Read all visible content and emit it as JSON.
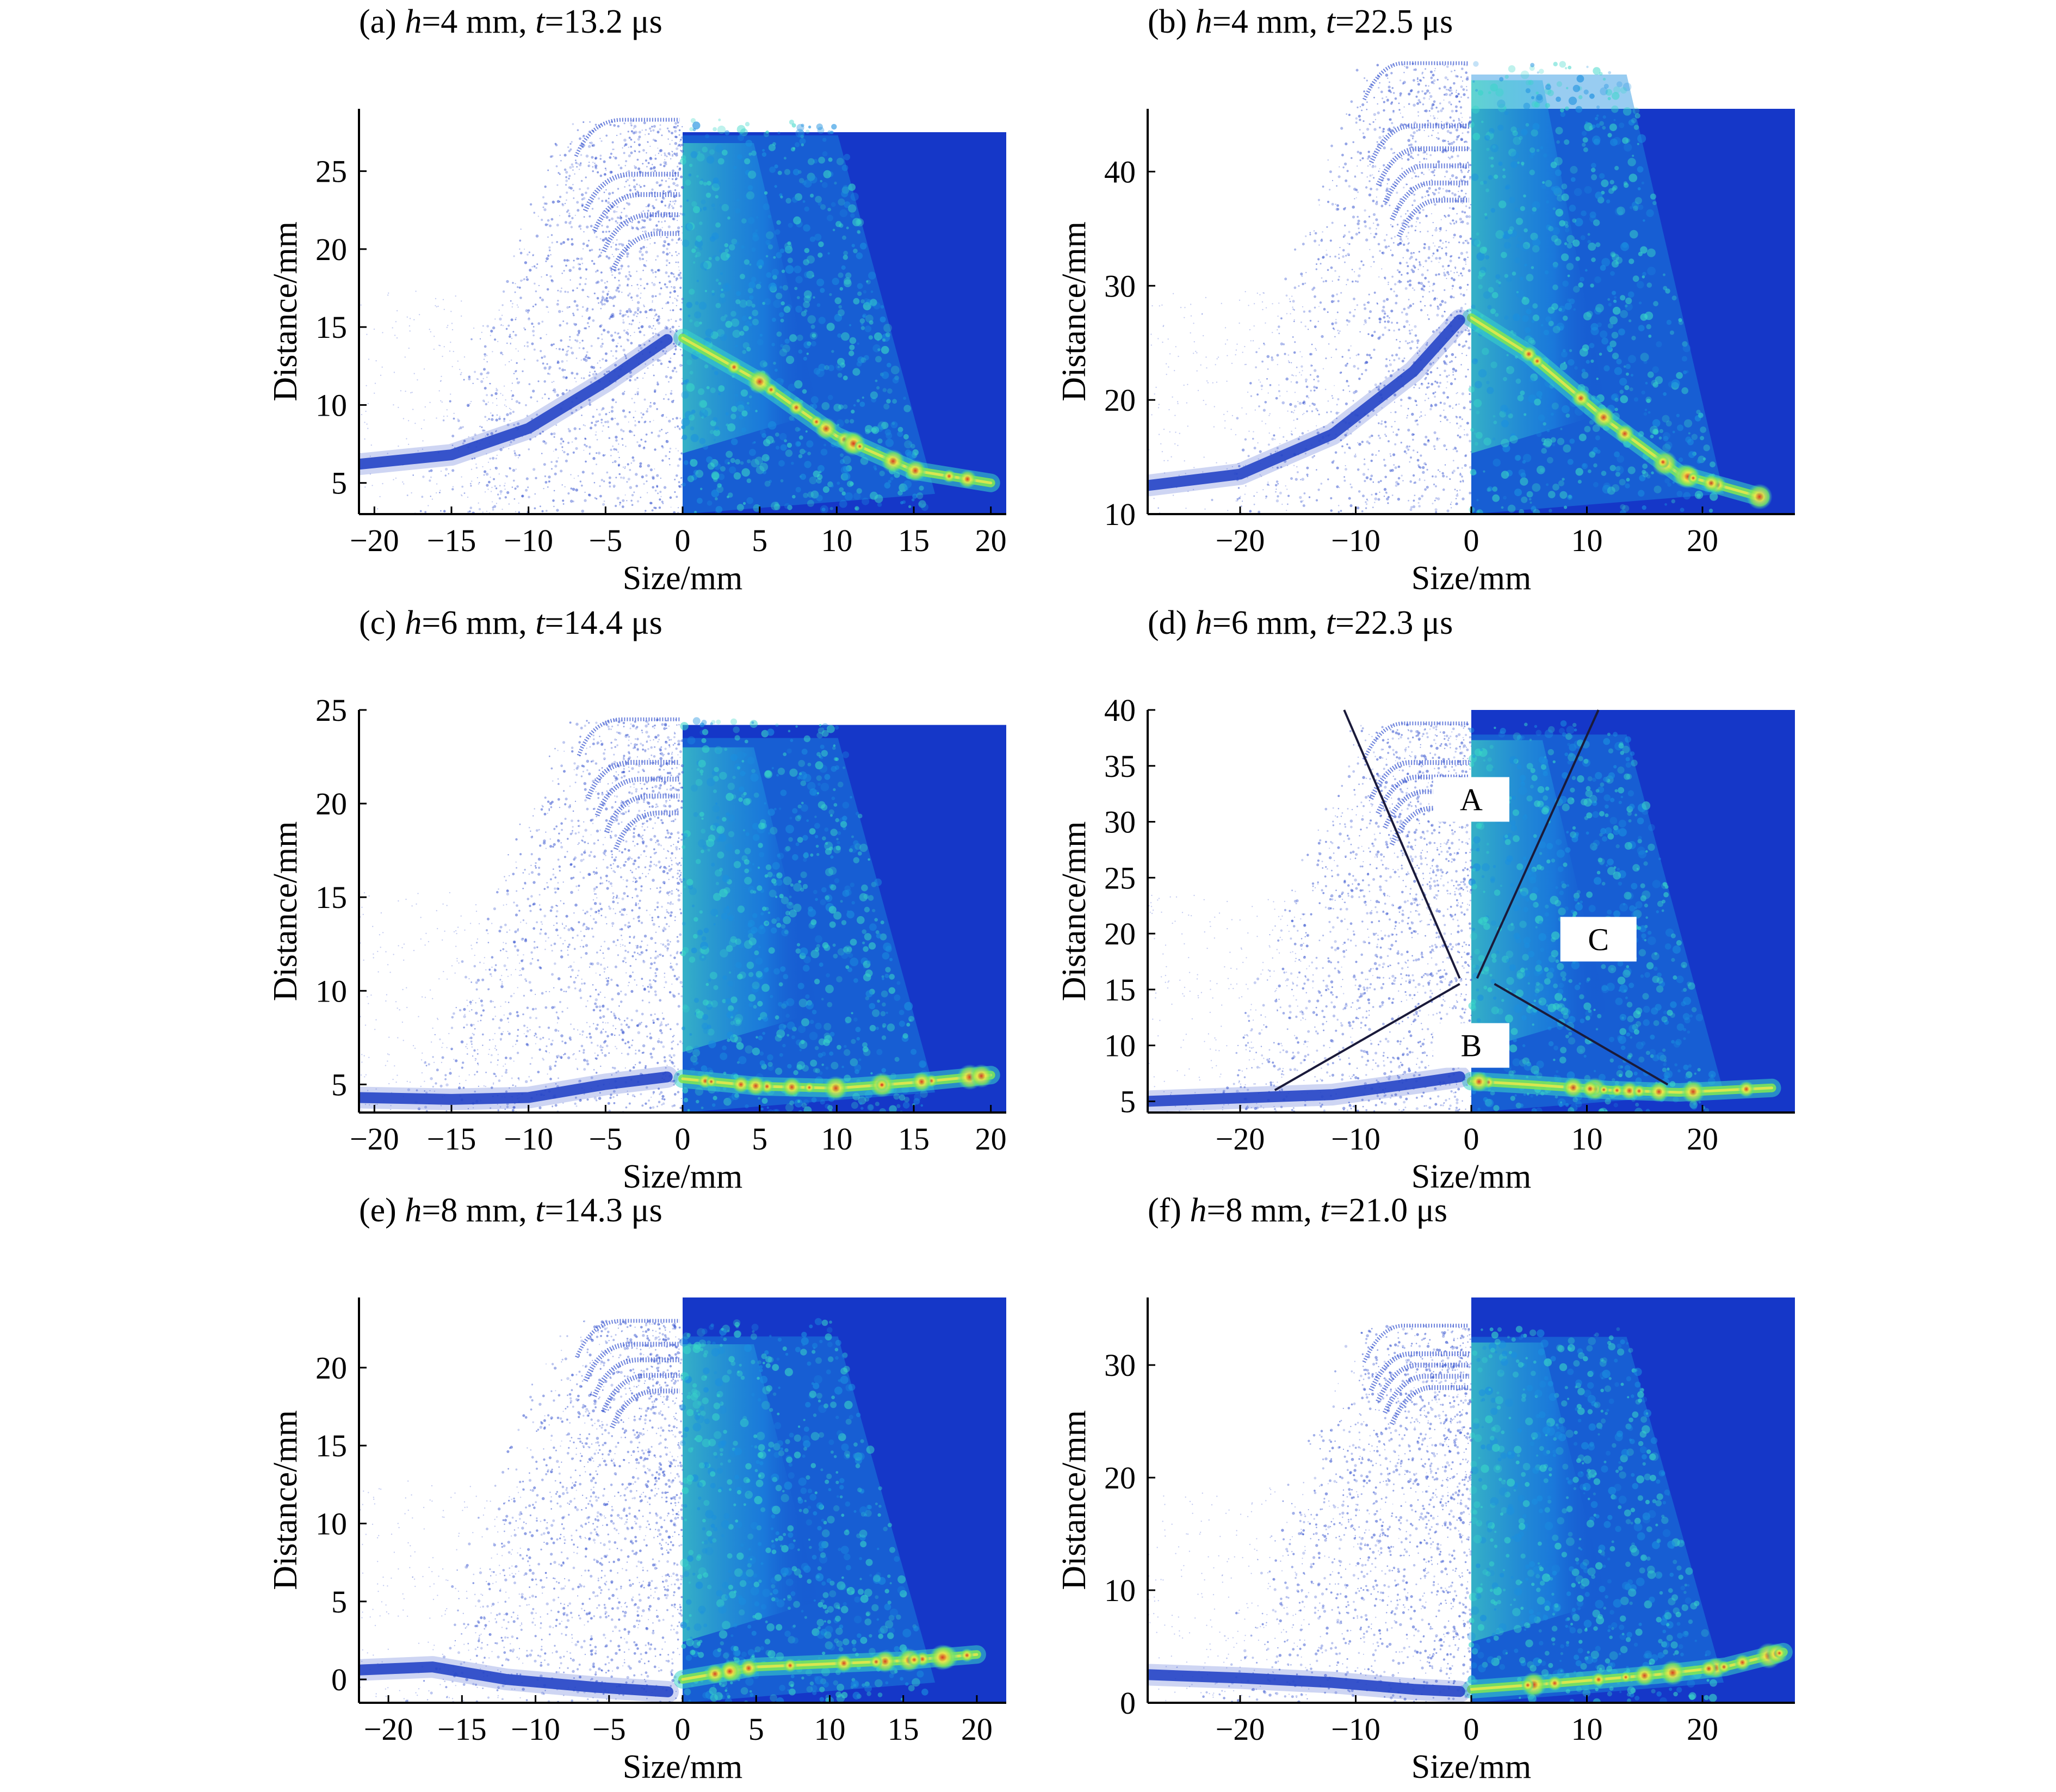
{
  "figure": {
    "colors": {
      "scatter_point": "#3a57d0",
      "scatter_dense": "#1e3fc4",
      "contour_background": "#1537c8",
      "contour_mid": "#1a8fe0",
      "contour_cyan": "#38d6c8",
      "contour_green": "#7be35a",
      "contour_yellow": "#f2e84a",
      "contour_red": "#d01818",
      "axis": "#000000",
      "annotation_line": "#1a1a3a"
    },
    "panels": [
      {
        "id": "a",
        "title_prefix": "(a) ",
        "title_h": "h",
        "title_h_val": "=4 mm, ",
        "title_t": "t",
        "title_t_val": "=13.2 μs",
        "xlabel": "Size/mm",
        "ylabel": "Distance/mm",
        "xlim": [
          -21,
          21
        ],
        "ylim": [
          3,
          29
        ],
        "xticks": [
          -20,
          -15,
          -10,
          -5,
          0,
          5,
          10,
          15,
          20
        ],
        "xtick_labels": [
          "−20",
          "−15",
          "−10",
          "−5",
          "0",
          "5",
          "10",
          "15",
          "20"
        ],
        "yticks": [
          5,
          10,
          15,
          20,
          25
        ],
        "ytick_labels": [
          "5",
          "10",
          "15",
          "20",
          "25"
        ],
        "contour_top": 27.5,
        "front_left": [
          [
            -21,
            6.2
          ],
          [
            -15,
            6.8
          ],
          [
            -10,
            8.5
          ],
          [
            -5,
            11.5
          ],
          [
            -1,
            14.2
          ]
        ],
        "front_right": [
          [
            0,
            14.3
          ],
          [
            5,
            11.5
          ],
          [
            10,
            8
          ],
          [
            15,
            5.8
          ],
          [
            20,
            5
          ]
        ],
        "bands": [
          28.3,
          24.8,
          23.5,
          22.2,
          21
        ]
      },
      {
        "id": "b",
        "title_prefix": "(b) ",
        "title_h": "h",
        "title_h_val": "=4 mm, ",
        "title_t": "t",
        "title_t_val": "=22.5 μs",
        "xlabel": "Size/mm",
        "ylabel": "Distance/mm",
        "xlim": [
          -28,
          28
        ],
        "ylim": [
          10,
          45.5
        ],
        "xticks": [
          -20,
          -10,
          0,
          10,
          20
        ],
        "xtick_labels": [
          "−20",
          "−10",
          "0",
          "10",
          "20"
        ],
        "yticks": [
          10,
          20,
          30,
          40
        ],
        "ytick_labels": [
          "10",
          "20",
          "30",
          "40"
        ],
        "contour_top": 45.5,
        "front_left": [
          [
            -28,
            12.5
          ],
          [
            -20,
            13.5
          ],
          [
            -12,
            17
          ],
          [
            -5,
            22.5
          ],
          [
            -1,
            27
          ]
        ],
        "front_right": [
          [
            0,
            27.2
          ],
          [
            5,
            24
          ],
          [
            12,
            18
          ],
          [
            18,
            13.5
          ],
          [
            25,
            11.5
          ]
        ],
        "bands": [
          49.5,
          44,
          42,
          40.5,
          39,
          37.5
        ]
      },
      {
        "id": "c",
        "title_prefix": "(c) ",
        "title_h": "h",
        "title_h_val": "=6 mm, ",
        "title_t": "t",
        "title_t_val": "=14.4 μs",
        "xlabel": "Size/mm",
        "ylabel": "Distance/mm",
        "xlim": [
          -21,
          21
        ],
        "ylim": [
          3.5,
          25
        ],
        "xticks": [
          -20,
          -15,
          -10,
          -5,
          0,
          5,
          10,
          15,
          20
        ],
        "xtick_labels": [
          "−20",
          "−15",
          "−10",
          "−5",
          "0",
          "5",
          "10",
          "15",
          "20"
        ],
        "yticks": [
          5,
          10,
          15,
          20,
          25
        ],
        "ytick_labels": [
          "5",
          "10",
          "15",
          "20",
          "25"
        ],
        "contour_top": 24.2,
        "front_left": [
          [
            -21,
            4.3
          ],
          [
            -15,
            4.2
          ],
          [
            -10,
            4.3
          ],
          [
            -5,
            5
          ],
          [
            -1,
            5.4
          ]
        ],
        "front_right": [
          [
            0,
            5.3
          ],
          [
            5,
            4.9
          ],
          [
            10,
            4.8
          ],
          [
            15,
            5.1
          ],
          [
            20,
            5.5
          ]
        ],
        "bands": [
          24.5,
          22.2,
          21.3,
          20.4,
          19.5
        ]
      },
      {
        "id": "d",
        "title_prefix": "(d) ",
        "title_h": "h",
        "title_h_val": "=6 mm, ",
        "title_t": "t",
        "title_t_val": "=22.3 μs",
        "xlabel": "Size/mm",
        "ylabel": "Distance/mm",
        "xlim": [
          -28,
          28
        ],
        "ylim": [
          4,
          40
        ],
        "xticks": [
          -20,
          -10,
          0,
          10,
          20
        ],
        "xtick_labels": [
          "−20",
          "−10",
          "0",
          "10",
          "20"
        ],
        "yticks": [
          5,
          10,
          15,
          20,
          25,
          30,
          35,
          40
        ],
        "ytick_labels": [
          "5",
          "10",
          "15",
          "20",
          "25",
          "30",
          "35",
          "40"
        ],
        "contour_top": 40,
        "front_left": [
          [
            -28,
            5
          ],
          [
            -20,
            5.3
          ],
          [
            -12,
            5.6
          ],
          [
            -5,
            6.6
          ],
          [
            -1,
            7.2
          ]
        ],
        "front_right": [
          [
            0,
            6.8
          ],
          [
            5,
            6.5
          ],
          [
            12,
            6
          ],
          [
            18,
            5.8
          ],
          [
            26,
            6.2
          ]
        ],
        "bands": [
          38.8,
          35.3,
          34,
          32.7,
          31.2
        ],
        "region_labels": [
          {
            "text": "A",
            "x": 0,
            "y": 32
          },
          {
            "text": "B",
            "x": 0,
            "y": 10
          },
          {
            "text": "C",
            "x": 11,
            "y": 19.5
          }
        ],
        "region_lines": [
          [
            [
              -11,
              40
            ],
            [
              -1,
              16
            ]
          ],
          [
            [
              11,
              40
            ],
            [
              0.5,
              16
            ]
          ],
          [
            [
              -17,
              6
            ],
            [
              -1,
              15.5
            ]
          ],
          [
            [
              2,
              15.5
            ],
            [
              17,
              6.5
            ]
          ]
        ]
      },
      {
        "id": "e",
        "title_prefix": "(e) ",
        "title_h": "h",
        "title_h_val": "=8 mm, ",
        "title_t": "t",
        "title_t_val": "=14.3 μs",
        "xlabel": "Size/mm",
        "ylabel": "Distance/mm",
        "xlim": [
          -22,
          22
        ],
        "ylim": [
          -1.5,
          24.5
        ],
        "xticks": [
          -20,
          -15,
          -10,
          -5,
          0,
          5,
          10,
          15,
          20
        ],
        "xtick_labels": [
          "−20",
          "−15",
          "−10",
          "−5",
          "0",
          "5",
          "10",
          "15",
          "20"
        ],
        "yticks": [
          0,
          5,
          10,
          15,
          20
        ],
        "ytick_labels": [
          "0",
          "5",
          "10",
          "15",
          "20"
        ],
        "contour_top": 24.5,
        "front_left": [
          [
            -22,
            0.6
          ],
          [
            -17,
            0.8
          ],
          [
            -12,
            0
          ],
          [
            -6,
            -0.5
          ],
          [
            -1,
            -0.8
          ]
        ],
        "front_right": [
          [
            0,
            0
          ],
          [
            5,
            0.8
          ],
          [
            10,
            1
          ],
          [
            15,
            1.2
          ],
          [
            20,
            1.6
          ]
        ],
        "bands": [
          23,
          21.5,
          20.5,
          19.5,
          18.5
        ]
      },
      {
        "id": "f",
        "title_prefix": "(f) ",
        "title_h": "h",
        "title_h_val": "=8 mm, ",
        "title_t": "t",
        "title_t_val": "=21.0 μs",
        "xlabel": "Size/mm",
        "ylabel": "Distance/mm",
        "xlim": [
          -28,
          28
        ],
        "ylim": [
          0,
          36
        ],
        "xticks": [
          -20,
          -10,
          0,
          10,
          20
        ],
        "xtick_labels": [
          "−20",
          "−10",
          "0",
          "10",
          "20"
        ],
        "yticks": [
          0,
          10,
          20,
          30
        ],
        "ytick_labels": [
          "0",
          "10",
          "20",
          "30"
        ],
        "contour_top": 36,
        "front_left": [
          [
            -28,
            2.5
          ],
          [
            -20,
            2.2
          ],
          [
            -12,
            1.8
          ],
          [
            -5,
            1.2
          ],
          [
            -1,
            1
          ]
        ],
        "front_right": [
          [
            0,
            1.2
          ],
          [
            8,
            1.8
          ],
          [
            16,
            2.5
          ],
          [
            22,
            3.2
          ],
          [
            27,
            4.5
          ]
        ],
        "bands": [
          33.5,
          31,
          30,
          29,
          28
        ]
      }
    ]
  }
}
